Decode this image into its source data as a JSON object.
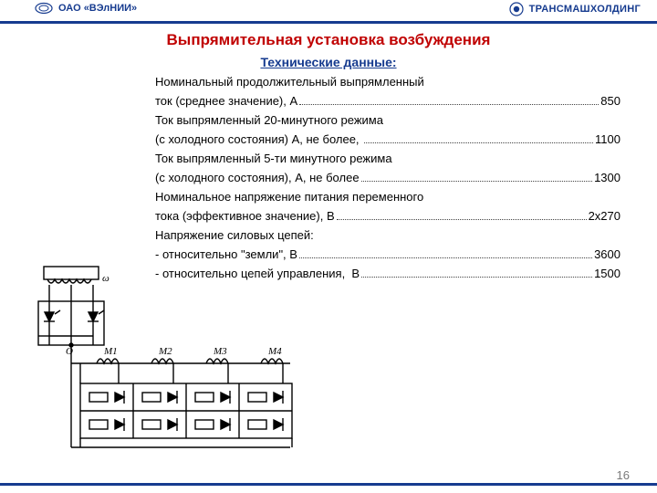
{
  "colors": {
    "brand": "#163b8f",
    "title": "#c00000",
    "text": "#000000",
    "pagenum": "#7a7a7a",
    "diagram_line": "#000000"
  },
  "header": {
    "left_org": "ОАО «ВЭлНИИ»",
    "right_org": "ТРАНСМАШХОЛДИНГ"
  },
  "title": "Выпрямительная установка возбуждения",
  "subtitle": "Технические данные:",
  "specs": [
    {
      "pre": "Номинальный продолжительный выпрямленный"
    },
    {
      "label": "ток (среднее значение), А",
      "value": "850"
    },
    {
      "pre": "Ток выпрямленный 20-минутного режима"
    },
    {
      "label": "(с холодного состояния) А, не более, ",
      "value": "1100"
    },
    {
      "pre": "Ток выпрямленный 5-ти минутного режима"
    },
    {
      "label": "(с холодного состояния), А, не более",
      "value": "1300"
    },
    {
      "pre": "Номинальное напряжение питания переменного"
    },
    {
      "label": "тока (эффективное значение), В",
      "value": "2х270"
    },
    {
      "pre": "Напряжение силовых цепей:"
    },
    {
      "label": "- относительно \"земли\", В",
      "value": "3600"
    },
    {
      "label": "- относительно цепей управления,  В",
      "value": "1500"
    }
  ],
  "diagram": {
    "type": "circuit",
    "line_color": "#000000",
    "line_width": 1.4,
    "labels": {
      "winding": "ω",
      "neutral": "O",
      "motors": [
        "M1",
        "M2",
        "M3",
        "M4"
      ]
    }
  },
  "page_number": "16"
}
